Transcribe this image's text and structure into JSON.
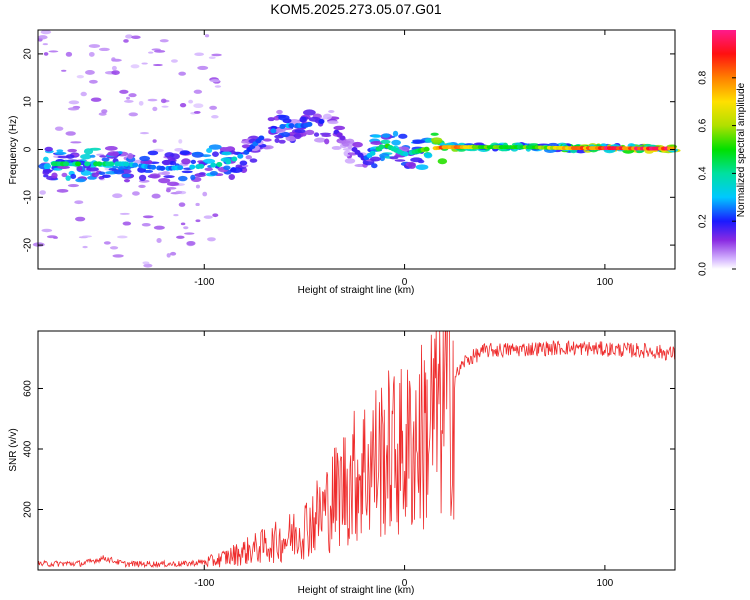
{
  "title": "KOM5.2025.273.05.07.G01",
  "spectrogram": {
    "type": "heatmap",
    "xlabel": "Height of straight line (km)",
    "ylabel": "Frequency (Hz)",
    "xlim": [
      -183,
      135
    ],
    "ylim": [
      -25,
      25
    ],
    "xticks": [
      -100,
      0,
      100
    ],
    "yticks": [
      -20,
      -10,
      0,
      10,
      20
    ],
    "colorbar": {
      "label": "Normalized spectral amplitude",
      "range": [
        0,
        1
      ],
      "ticks": [
        0.0,
        0.2,
        0.4,
        0.6,
        0.8
      ]
    },
    "ridge": [
      {
        "x": -170,
        "y": -3.0,
        "amp": 0.45
      },
      {
        "x": -155,
        "y": -3.0,
        "amp": 0.5
      },
      {
        "x": -140,
        "y": -3.0,
        "amp": 0.35
      },
      {
        "x": -120,
        "y": -4.0,
        "amp": 0.25
      },
      {
        "x": -100,
        "y": -3.5,
        "amp": 0.4
      },
      {
        "x": -90,
        "y": -3.0,
        "amp": 0.45
      },
      {
        "x": -80,
        "y": -1.0,
        "amp": 0.25
      },
      {
        "x": -70,
        "y": 3.0,
        "amp": 0.25
      },
      {
        "x": -60,
        "y": 5.0,
        "amp": 0.3
      },
      {
        "x": -50,
        "y": 5.0,
        "amp": 0.25
      },
      {
        "x": -40,
        "y": 6.0,
        "amp": 0.2
      },
      {
        "x": -30,
        "y": 2.0,
        "amp": 0.15
      },
      {
        "x": -20,
        "y": -2.0,
        "amp": 0.2
      },
      {
        "x": -10,
        "y": 1.0,
        "amp": 0.55
      },
      {
        "x": 0,
        "y": -1.0,
        "amp": 0.35
      },
      {
        "x": 10,
        "y": 0.0,
        "amp": 0.55
      },
      {
        "x": 20,
        "y": 0.5,
        "amp": 0.9
      },
      {
        "x": 40,
        "y": 0.5,
        "amp": 0.6
      },
      {
        "x": 60,
        "y": 0.5,
        "amp": 0.55
      },
      {
        "x": 80,
        "y": 0.3,
        "amp": 0.75
      },
      {
        "x": 100,
        "y": 0.3,
        "amp": 0.95
      },
      {
        "x": 120,
        "y": 0.2,
        "amp": 0.95
      },
      {
        "x": 135,
        "y": 0.2,
        "amp": 0.95
      }
    ]
  },
  "snr": {
    "type": "line",
    "xlabel": "Height of straight line (km)",
    "ylabel": "SNR (v/v)",
    "xlim": [
      -183,
      135
    ],
    "ylim": [
      0,
      790
    ],
    "xticks": [
      -100,
      0,
      100
    ],
    "yticks": [
      200,
      400,
      600
    ],
    "color": "#ee2b2b",
    "series_name": "SNR",
    "envelope": [
      {
        "x": -183,
        "y": 20
      },
      {
        "x": -160,
        "y": 22
      },
      {
        "x": -150,
        "y": 40
      },
      {
        "x": -140,
        "y": 20
      },
      {
        "x": -110,
        "y": 20
      },
      {
        "x": -95,
        "y": 30
      },
      {
        "x": -80,
        "y": 60
      },
      {
        "x": -70,
        "y": 80
      },
      {
        "x": -60,
        "y": 100
      },
      {
        "x": -50,
        "y": 140
      },
      {
        "x": -40,
        "y": 200
      },
      {
        "x": -30,
        "y": 280
      },
      {
        "x": -20,
        "y": 340
      },
      {
        "x": -10,
        "y": 380
      },
      {
        "x": 0,
        "y": 390
      },
      {
        "x": 10,
        "y": 450
      },
      {
        "x": 20,
        "y": 580
      },
      {
        "x": 30,
        "y": 690
      },
      {
        "x": 40,
        "y": 725
      },
      {
        "x": 60,
        "y": 730
      },
      {
        "x": 80,
        "y": 735
      },
      {
        "x": 100,
        "y": 730
      },
      {
        "x": 120,
        "y": 725
      },
      {
        "x": 135,
        "y": 715
      }
    ]
  }
}
